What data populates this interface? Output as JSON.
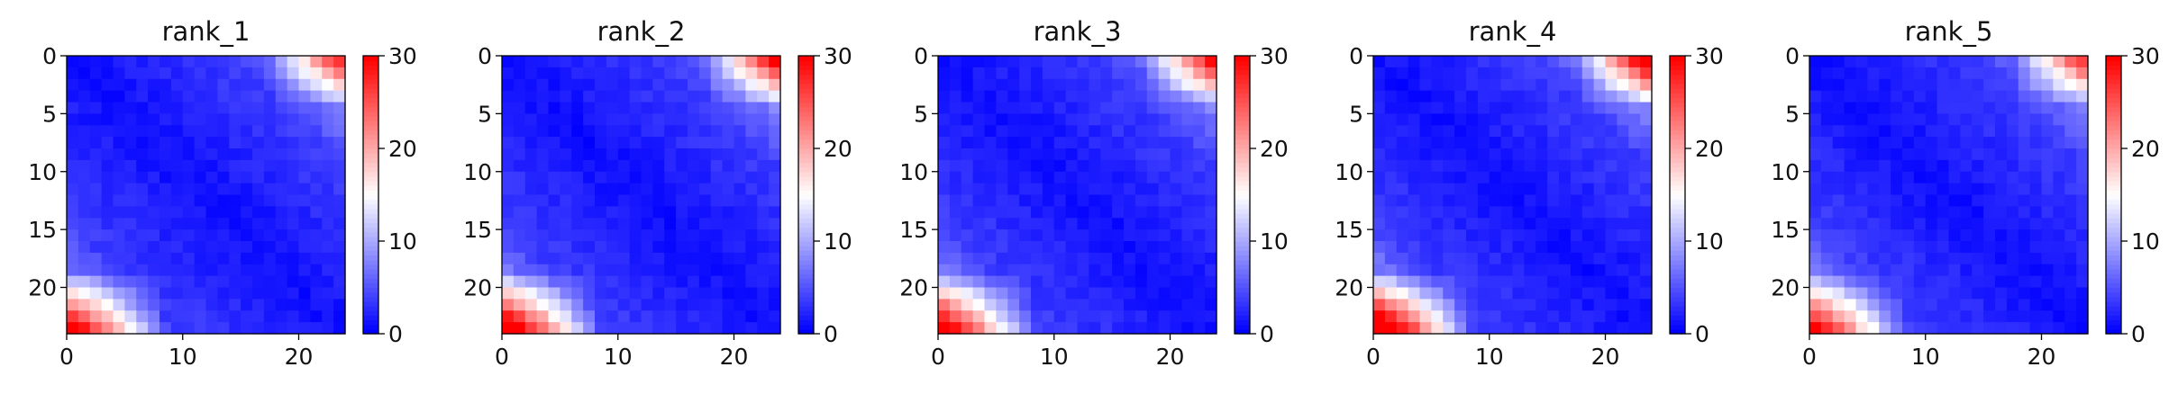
{
  "chart_data": [
    {
      "type": "heatmap",
      "title": "rank_1",
      "n": 24,
      "seed": 11,
      "corner": 0.95,
      "xticks": [
        0,
        10,
        20
      ],
      "yticks": [
        0,
        5,
        10,
        15,
        20
      ],
      "colorbar": {
        "min": 0,
        "max": 30,
        "ticks": [
          0,
          10,
          20,
          30
        ]
      },
      "colormap": "bwr"
    },
    {
      "type": "heatmap",
      "title": "rank_2",
      "n": 24,
      "seed": 23,
      "corner": 1.05,
      "xticks": [
        0,
        10,
        20
      ],
      "yticks": [
        0,
        5,
        10,
        15,
        20
      ],
      "colorbar": {
        "min": 0,
        "max": 30,
        "ticks": [
          0,
          10,
          20,
          30
        ]
      },
      "colormap": "bwr"
    },
    {
      "type": "heatmap",
      "title": "rank_3",
      "n": 24,
      "seed": 37,
      "corner": 1.0,
      "xticks": [
        0,
        10,
        20
      ],
      "yticks": [
        0,
        5,
        10,
        15,
        20
      ],
      "colorbar": {
        "min": 0,
        "max": 30,
        "ticks": [
          0,
          10,
          20,
          30
        ]
      },
      "colormap": "bwr"
    },
    {
      "type": "heatmap",
      "title": "rank_4",
      "n": 24,
      "seed": 41,
      "corner": 1.15,
      "xticks": [
        0,
        10,
        20
      ],
      "yticks": [
        0,
        5,
        10,
        15,
        20
      ],
      "colorbar": {
        "min": 0,
        "max": 30,
        "ticks": [
          0,
          10,
          20,
          30
        ]
      },
      "colormap": "bwr"
    },
    {
      "type": "heatmap",
      "title": "rank_5",
      "n": 24,
      "seed": 53,
      "corner": 0.92,
      "xticks": [
        0,
        10,
        20
      ],
      "yticks": [
        0,
        5,
        10,
        15,
        20
      ],
      "colorbar": {
        "min": 0,
        "max": 30,
        "ticks": [
          0,
          10,
          20,
          30
        ]
      },
      "colormap": "bwr"
    }
  ]
}
